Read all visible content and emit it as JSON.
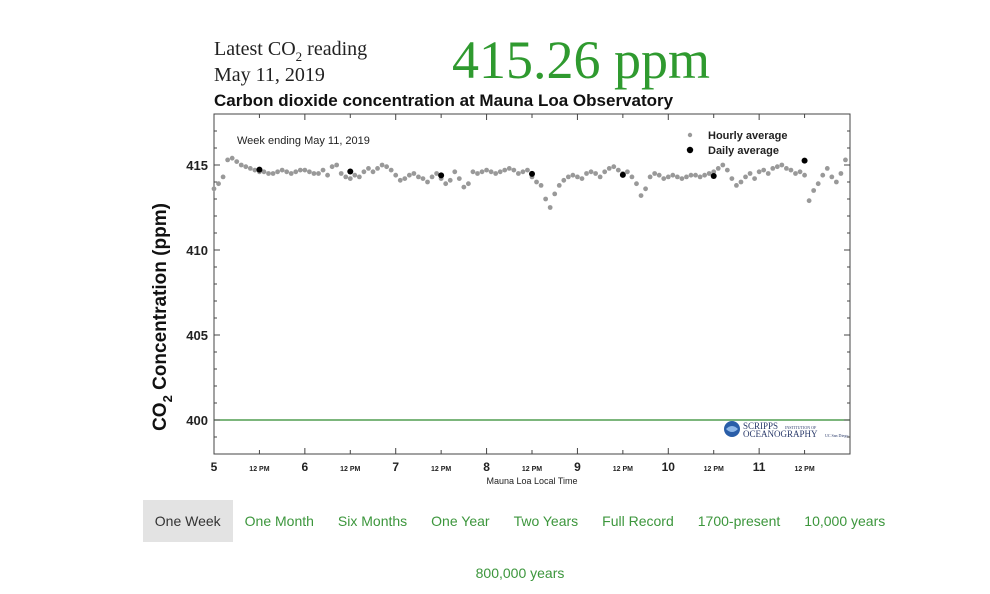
{
  "header": {
    "latest_label_pre": "Latest CO",
    "latest_label_sub": "2",
    "latest_label_post": " reading",
    "date": "May 11, 2019",
    "reading": "415.26 ppm"
  },
  "chart_title": "Carbon dioxide concentration at Mauna Loa Observatory",
  "chart_data": {
    "type": "scatter",
    "annotation": "Week ending May 11, 2019",
    "xlabel": "Mauna Loa Local Time",
    "ylabel_pre": "CO",
    "ylabel_sub": "2",
    "ylabel_post": " Concentration (ppm)",
    "xlim": [
      5,
      12
    ],
    "ylim": [
      398,
      418
    ],
    "yticks": [
      400,
      405,
      410,
      415
    ],
    "x_major_ticks": [
      5,
      6,
      7,
      8,
      9,
      10,
      11
    ],
    "x_minor_tick_label": "12 PM",
    "x_minor_ticks": [
      5.5,
      6.5,
      7.5,
      8.5,
      9.5,
      10.5,
      11.5
    ],
    "reference_line": 400,
    "series": [
      {
        "name": "Hourly average",
        "marker": "small-dot",
        "color": "#999999",
        "x": [
          5.0,
          5.05,
          5.1,
          5.15,
          5.2,
          5.25,
          5.3,
          5.35,
          5.4,
          5.45,
          5.5,
          5.55,
          5.6,
          5.65,
          5.7,
          5.75,
          5.8,
          5.85,
          5.9,
          5.95,
          6.0,
          6.05,
          6.1,
          6.15,
          6.2,
          6.25,
          6.3,
          6.35,
          6.4,
          6.45,
          6.5,
          6.55,
          6.6,
          6.65,
          6.7,
          6.75,
          6.8,
          6.85,
          6.9,
          6.95,
          7.0,
          7.05,
          7.1,
          7.15,
          7.2,
          7.25,
          7.3,
          7.35,
          7.4,
          7.45,
          7.5,
          7.55,
          7.6,
          7.65,
          7.7,
          7.75,
          7.8,
          7.85,
          7.9,
          7.95,
          8.0,
          8.05,
          8.1,
          8.15,
          8.2,
          8.25,
          8.3,
          8.35,
          8.4,
          8.45,
          8.5,
          8.55,
          8.6,
          8.65,
          8.7,
          8.75,
          8.8,
          8.85,
          8.9,
          8.95,
          9.0,
          9.05,
          9.1,
          9.15,
          9.2,
          9.25,
          9.3,
          9.35,
          9.4,
          9.45,
          9.5,
          9.55,
          9.6,
          9.65,
          9.7,
          9.75,
          9.8,
          9.85,
          9.9,
          9.95,
          10.0,
          10.05,
          10.1,
          10.15,
          10.2,
          10.25,
          10.3,
          10.35,
          10.4,
          10.45,
          10.5,
          10.55,
          10.6,
          10.65,
          10.7,
          10.75,
          10.8,
          10.85,
          10.9,
          10.95,
          11.0,
          11.05,
          11.1,
          11.15,
          11.2,
          11.25,
          11.3,
          11.35,
          11.4,
          11.45,
          11.5,
          11.55,
          11.6,
          11.65,
          11.7,
          11.75,
          11.8,
          11.85,
          11.9,
          11.95
        ],
        "y": [
          413.6,
          413.9,
          414.3,
          415.3,
          415.4,
          415.2,
          415.0,
          414.9,
          414.8,
          414.7,
          414.6,
          414.6,
          414.5,
          414.5,
          414.6,
          414.7,
          414.6,
          414.5,
          414.6,
          414.7,
          414.7,
          414.6,
          414.5,
          414.5,
          414.7,
          414.4,
          414.9,
          415.0,
          414.5,
          414.3,
          414.2,
          414.4,
          414.3,
          414.6,
          414.8,
          414.6,
          414.8,
          415.0,
          414.9,
          414.7,
          414.4,
          414.1,
          414.2,
          414.4,
          414.5,
          414.3,
          414.2,
          414.0,
          414.3,
          414.5,
          414.2,
          413.9,
          414.1,
          414.6,
          414.2,
          413.7,
          413.9,
          414.6,
          414.5,
          414.6,
          414.7,
          414.6,
          414.5,
          414.6,
          414.7,
          414.8,
          414.7,
          414.5,
          414.6,
          414.7,
          414.3,
          414.0,
          413.8,
          413.0,
          412.5,
          413.3,
          413.8,
          414.1,
          414.3,
          414.4,
          414.3,
          414.2,
          414.5,
          414.6,
          414.5,
          414.3,
          414.6,
          414.8,
          414.9,
          414.7,
          414.5,
          414.6,
          414.3,
          413.9,
          413.2,
          413.6,
          414.3,
          414.5,
          414.4,
          414.2,
          414.3,
          414.4,
          414.3,
          414.2,
          414.3,
          414.4,
          414.4,
          414.3,
          414.4,
          414.5,
          414.6,
          414.8,
          415.0,
          414.7,
          414.2,
          413.8,
          414.0,
          414.3,
          414.5,
          414.2,
          414.6,
          414.7,
          414.5,
          414.8,
          414.9,
          415.0,
          414.8,
          414.7,
          414.5,
          414.6,
          414.4,
          412.9,
          413.5,
          413.9,
          414.4,
          414.8,
          414.3,
          414.0,
          414.5,
          415.3
        ]
      },
      {
        "name": "Daily average",
        "marker": "large-dot",
        "color": "#000000",
        "x": [
          5.5,
          6.5,
          7.5,
          8.5,
          9.5,
          10.5,
          11.5
        ],
        "y": [
          414.73,
          414.62,
          414.39,
          414.48,
          414.42,
          414.35,
          415.26
        ]
      }
    ]
  },
  "logo": {
    "line1": "SCRIPPS",
    "line1_small": "INSTITUTION OF",
    "line2": "OCEANOGRAPHY",
    "line2_small": "UC San Diego"
  },
  "tabs": [
    {
      "label": "One Week",
      "active": true
    },
    {
      "label": "One Month",
      "active": false
    },
    {
      "label": "Six Months",
      "active": false
    },
    {
      "label": "One Year",
      "active": false
    },
    {
      "label": "Two Years",
      "active": false
    },
    {
      "label": "Full Record",
      "active": false
    },
    {
      "label": "1700-present",
      "active": false
    },
    {
      "label": "10,000 years",
      "active": false
    },
    {
      "label": "800,000 years",
      "active": false
    }
  ],
  "colors": {
    "accent_green": "#2f9a2f",
    "tab_green": "#3c963c",
    "reference_line": "#2e8b2e",
    "active_tab_bg": "#e3e3e3"
  }
}
